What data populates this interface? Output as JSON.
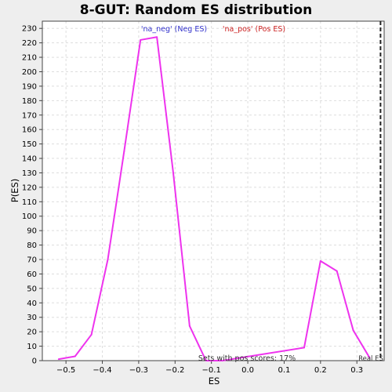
{
  "chart_data": {
    "type": "line",
    "title": "8-GUT: Random ES distribution",
    "xlabel": "ES",
    "ylabel": "P(ES)",
    "xlim": [
      -0.565,
      0.375
    ],
    "ylim": [
      0,
      235
    ],
    "x_ticks": [
      -0.5,
      -0.4,
      -0.3,
      -0.2,
      -0.1,
      0.0,
      0.1,
      0.2,
      0.3
    ],
    "x_tick_labels": [
      "−0.5",
      "−0.4",
      "−0.3",
      "−0.2",
      "−0.1",
      "0.0",
      "0.1",
      "0.2",
      "0.3"
    ],
    "y_ticks": [
      0,
      10,
      20,
      30,
      40,
      50,
      60,
      70,
      80,
      90,
      100,
      110,
      120,
      130,
      140,
      150,
      160,
      170,
      180,
      190,
      200,
      210,
      220,
      230
    ],
    "grid": true,
    "legend": {
      "neg_label": "'na_neg' (Neg ES)",
      "pos_label": "'na_pos' (Pos ES)",
      "neg_color": "#3333cc",
      "pos_color": "#cc2222"
    },
    "series": [
      {
        "color": "#ee33ee",
        "x": [
          -0.52,
          -0.475,
          -0.43,
          -0.385,
          -0.34,
          -0.295,
          -0.25,
          -0.205,
          -0.16,
          -0.115,
          -0.07,
          0.155,
          0.2,
          0.245,
          0.29,
          0.335
        ],
        "y": [
          1,
          3,
          18,
          70,
          145,
          222,
          224,
          130,
          24,
          0,
          0,
          9,
          69,
          62,
          21,
          2
        ]
      }
    ],
    "real_es": {
      "x": 0.365,
      "label": "Real ES"
    },
    "annotation": "Sets with pos scores: 17%",
    "colors": {
      "line": "#ee33ee",
      "plot_bg": "#ffffff",
      "page_bg": "#eeeeee",
      "grid": "#dddddd",
      "axis": "#000000"
    }
  }
}
